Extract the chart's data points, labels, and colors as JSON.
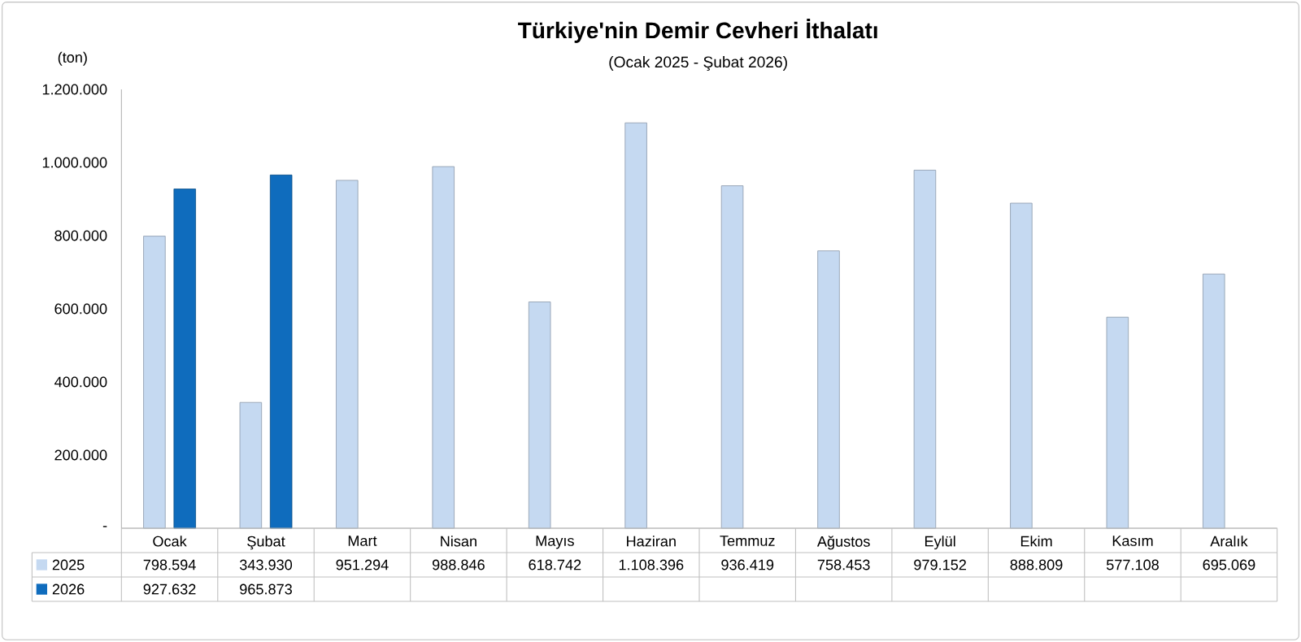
{
  "chart_data": {
    "type": "bar",
    "title": "Türkiye'nin Demir Cevheri İthalatı",
    "subtitle": "(Ocak 2025 - Şubat 2026)",
    "ylabel": "(ton)",
    "categories": [
      "Ocak",
      "Şubat",
      "Mart",
      "Nisan",
      "Mayıs",
      "Haziran",
      "Temmuz",
      "Ağustos",
      "Eylül",
      "Ekim",
      "Kasım",
      "Aralık"
    ],
    "series": [
      {
        "name": "2025",
        "color": "#c5d9f1",
        "values": [
          798594,
          343930,
          951294,
          988846,
          618742,
          1108396,
          936419,
          758453,
          979152,
          888809,
          577108,
          695069
        ],
        "value_labels": [
          "798.594",
          "343.930",
          "951.294",
          "988.846",
          "618.742",
          "1.108.396",
          "936.419",
          "758.453",
          "979.152",
          "888.809",
          "577.108",
          "695.069"
        ]
      },
      {
        "name": "2026",
        "color": "#0f6cbd",
        "values": [
          927632,
          965873,
          null,
          null,
          null,
          null,
          null,
          null,
          null,
          null,
          null,
          null
        ],
        "value_labels": [
          "927.632",
          "965.873",
          null,
          null,
          null,
          null,
          null,
          null,
          null,
          null,
          null,
          null
        ]
      }
    ],
    "ylim": [
      0,
      1200000
    ],
    "yticks": [
      {
        "value": 0,
        "label": "-"
      },
      {
        "value": 200000,
        "label": "200.000"
      },
      {
        "value": 400000,
        "label": "400.000"
      },
      {
        "value": 600000,
        "label": "600.000"
      },
      {
        "value": 800000,
        "label": "800.000"
      },
      {
        "value": 1000000,
        "label": "1.000.000"
      },
      {
        "value": 1200000,
        "label": "1.200.000"
      }
    ],
    "legend": "bottom",
    "grid": false
  }
}
